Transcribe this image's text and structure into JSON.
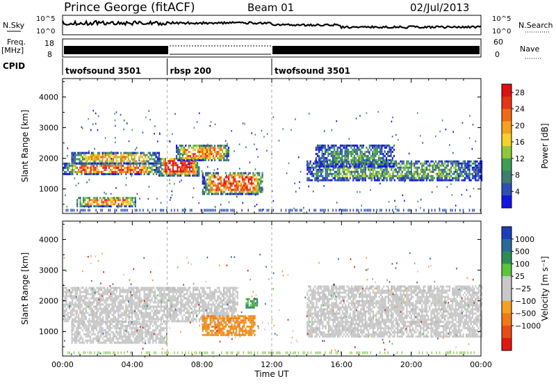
{
  "header": {
    "station": "Prince George (fitACF)",
    "beam": "Beam 01",
    "date": "02/Jul/2013"
  },
  "sky_panel": {
    "left_label": "N.Sky",
    "right_label": "N.Search",
    "left_ticks": [
      "10^5",
      "10^0"
    ],
    "right_ticks": [
      "10^5",
      "10^0"
    ]
  },
  "freq_panel": {
    "left_label_line1": "Freq.",
    "left_label_line2": "[MHz]",
    "right_label": "Nave",
    "left_ticks": [
      "18",
      "8"
    ],
    "right_ticks": [
      "60",
      "0"
    ]
  },
  "cpid_panel": {
    "label": "CPID",
    "segments": [
      {
        "name": "twofsound 3501",
        "start_hour": 0,
        "end_hour": 6
      },
      {
        "name": "rbsp 200",
        "start_hour": 6,
        "end_hour": 12
      },
      {
        "name": "twofsound 3501",
        "start_hour": 12,
        "end_hour": 24
      }
    ]
  },
  "chart_data": [
    {
      "type": "heatmap",
      "name": "power",
      "ylabel": "Slant Range [km]",
      "ylim": [
        200,
        4600
      ],
      "y_ticks": [
        "1000",
        "2000",
        "3000",
        "4000"
      ],
      "x_range_hours": [
        0,
        24
      ],
      "colorbar": {
        "label": "Power [dB]",
        "ticks": [
          "4",
          "8",
          "12",
          "16",
          "20",
          "24",
          "28"
        ],
        "colors": [
          "#1414e6",
          "#2f4fb4",
          "#3e7c6e",
          "#3f9b55",
          "#8cc93a",
          "#f4d22a",
          "#f7a01e",
          "#f06a14",
          "#e8321a",
          "#e01010"
        ]
      },
      "regions": [
        {
          "t0": 0.0,
          "t1": 5.5,
          "r0": 1450,
          "r1": 1800,
          "level": 0.75
        },
        {
          "t0": 0.5,
          "t1": 5.5,
          "r0": 1800,
          "r1": 2150,
          "level": 0.6
        },
        {
          "t0": 0.8,
          "t1": 4.2,
          "r0": 400,
          "r1": 700,
          "level": 0.7
        },
        {
          "t0": 5.5,
          "t1": 7.8,
          "r0": 1400,
          "r1": 2000,
          "level": 0.9
        },
        {
          "t0": 6.5,
          "t1": 9.5,
          "r0": 1900,
          "r1": 2400,
          "level": 0.7
        },
        {
          "t0": 8.0,
          "t1": 11.5,
          "r0": 800,
          "r1": 1500,
          "level": 0.8
        },
        {
          "t0": 14.0,
          "t1": 24.0,
          "r0": 1250,
          "r1": 1900,
          "level": 0.35
        },
        {
          "t0": 14.5,
          "t1": 19.0,
          "r0": 1700,
          "r1": 2400,
          "level": 0.3
        }
      ]
    },
    {
      "type": "heatmap",
      "name": "velocity",
      "ylabel": "Slant Range [km]",
      "xlabel": "Time UT",
      "ylim": [
        200,
        4600
      ],
      "y_ticks": [
        "1000",
        "2000",
        "3000",
        "4000"
      ],
      "x_ticks": [
        "00:00",
        "04:00",
        "08:00",
        "12:00",
        "16:00",
        "20:00",
        "00:00"
      ],
      "x_range_hours": [
        0,
        24
      ],
      "colorbar": {
        "label": "Velocity [m s⁻¹]",
        "ticks": [
          "1000",
          "500",
          "100",
          "25",
          "−25",
          "−100",
          "−500",
          "−1000"
        ],
        "colors": [
          "#1a3fb8",
          "#2a6a9a",
          "#2f8c5a",
          "#5cc43a",
          "#c8c8c8",
          "#c8c8c8",
          "#f5a020",
          "#f07818",
          "#e84a18",
          "#e01a10"
        ]
      },
      "regions": [
        {
          "t0": 0.0,
          "t1": 10.0,
          "r0": 1300,
          "r1": 2400,
          "level": "ground"
        },
        {
          "t0": 0.5,
          "t1": 6.0,
          "r0": 600,
          "r1": 1300,
          "level": "ground"
        },
        {
          "t0": 8.0,
          "t1": 11.0,
          "r0": 850,
          "r1": 1500,
          "level": "negative"
        },
        {
          "t0": 10.5,
          "t1": 11.2,
          "r0": 1750,
          "r1": 2050,
          "level": "positive"
        },
        {
          "t0": 14.0,
          "t1": 24.0,
          "r0": 800,
          "r1": 2500,
          "level": "ground"
        }
      ]
    }
  ]
}
